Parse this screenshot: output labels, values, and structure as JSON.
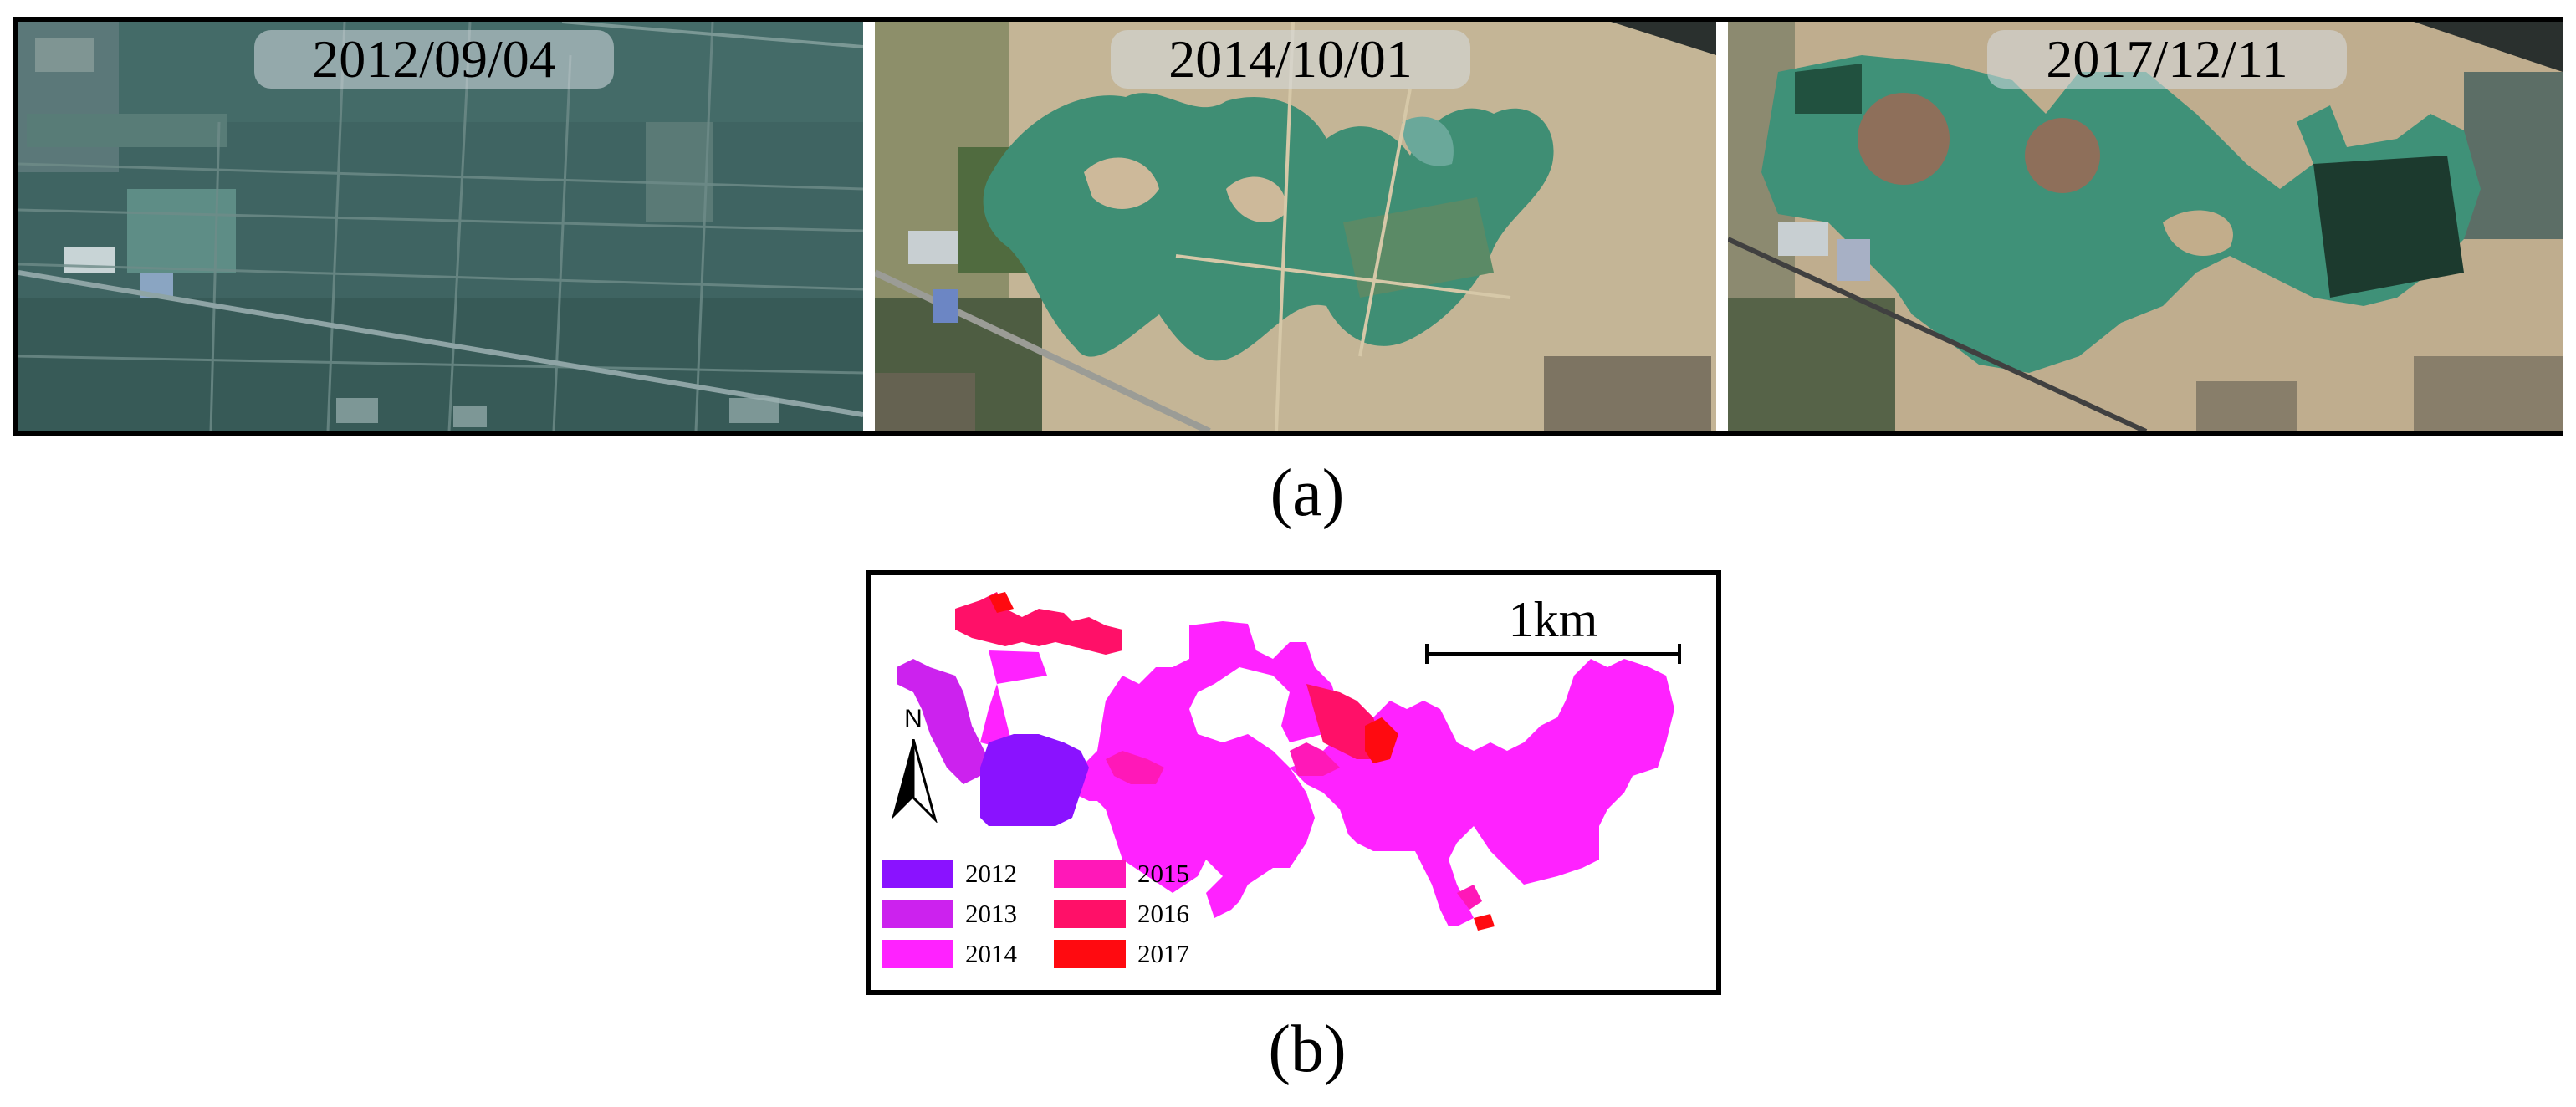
{
  "panel_a": {
    "caption": "(a)",
    "images": [
      {
        "date": "2012/09/04"
      },
      {
        "date": "2014/10/01"
      },
      {
        "date": "2017/12/11"
      }
    ]
  },
  "panel_b": {
    "caption": "(b)",
    "scale_label": "1km",
    "north_label": "N",
    "legend": [
      {
        "year": "2012",
        "color": "#8a12ff"
      },
      {
        "year": "2013",
        "color": "#cc22ee"
      },
      {
        "year": "2014",
        "color": "#ff22ff"
      },
      {
        "year": "2015",
        "color": "#ff18b8"
      },
      {
        "year": "2016",
        "color": "#ff1068"
      },
      {
        "year": "2017",
        "color": "#ff0a10"
      }
    ]
  }
}
